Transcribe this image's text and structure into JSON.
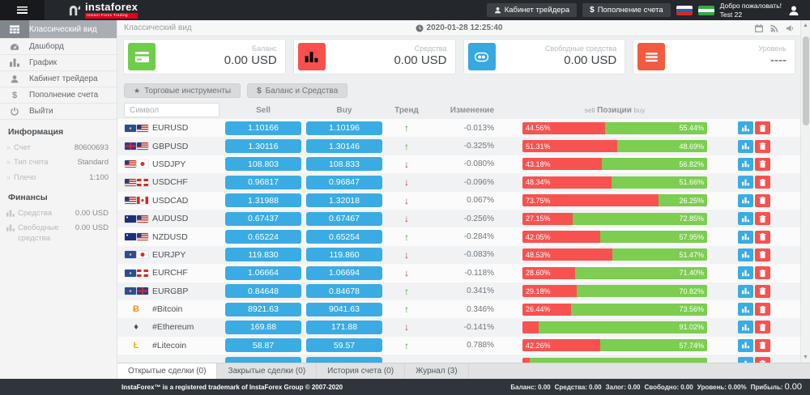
{
  "topbar": {
    "brand": "instaforex",
    "brand_sub": "Instant Forex Trading",
    "cabinet_label": "Кабинет трейдера",
    "deposit_label": "Пополнение счета",
    "welcome_line1": "Добро пожаловать!",
    "welcome_line2": "Test 22"
  },
  "sidebar": {
    "items": [
      {
        "label": "Классический вид",
        "icon": "table-icon",
        "active": true
      },
      {
        "label": "Дашборд",
        "icon": "dashboard-icon",
        "active": false
      },
      {
        "label": "График",
        "icon": "bar-chart-icon",
        "active": false
      },
      {
        "label": "Кабинет трейдера",
        "icon": "user-icon",
        "active": false
      },
      {
        "label": "Пополнение счета",
        "icon": "dollar-icon",
        "active": false
      },
      {
        "label": "Выйти",
        "icon": "power-icon",
        "active": false
      }
    ],
    "info_section": {
      "title": "Информация",
      "rows": [
        {
          "label": "Счет",
          "value": "80600693"
        },
        {
          "label": "Тип счета",
          "value": "Standard"
        },
        {
          "label": "Плечо",
          "value": "1:100"
        }
      ]
    },
    "finance_section": {
      "title": "Финансы",
      "rows": [
        {
          "label": "Средства",
          "value": "0.00 USD"
        },
        {
          "label": "Свободные средства",
          "value": "0.00 USD"
        }
      ]
    }
  },
  "header": {
    "title": "Классический вид",
    "datetime": "2020-01-28 12:25:40"
  },
  "cards": [
    {
      "label": "Баланс",
      "value": "0.00 USD",
      "icon": "credit-card-icon",
      "color": "#6fce49"
    },
    {
      "label": "Средства",
      "value": "0.00 USD",
      "icon": "bar-chart-icon",
      "color": "#f8504e"
    },
    {
      "label": "Свободные средства",
      "value": "0.00 USD",
      "icon": "binoculars-icon",
      "color": "#37a8e0"
    },
    {
      "label": "Уровень",
      "value": "----",
      "icon": "menu-icon",
      "color": "#f15b40"
    }
  ],
  "toolbar": {
    "instruments_label": "Торговые инструменты",
    "balance_label": "Баланс и Средства"
  },
  "table": {
    "symbol_placeholder": "Символ",
    "headers": {
      "sell": "Sell",
      "buy": "Buy",
      "trend": "Тренд",
      "change": "Изменение",
      "pos_sell": "sell",
      "pos_label": "Позиции",
      "pos_buy": "buy"
    },
    "rows": [
      {
        "symbol": "EURUSD",
        "flags": [
          "eu",
          "us"
        ],
        "sell": "1.10166",
        "buy": "1.10196",
        "trend": "up",
        "change": "-0.013%",
        "sell_pct": 44.56,
        "buy_pct": 55.44
      },
      {
        "symbol": "GBPUSD",
        "flags": [
          "gb",
          "us"
        ],
        "sell": "1.30116",
        "buy": "1.30146",
        "trend": "up",
        "change": "-0.325%",
        "sell_pct": 51.31,
        "buy_pct": 48.69
      },
      {
        "symbol": "USDJPY",
        "flags": [
          "us",
          "jp"
        ],
        "sell": "108.803",
        "buy": "108.833",
        "trend": "down",
        "change": "-0.080%",
        "sell_pct": 43.18,
        "buy_pct": 56.82
      },
      {
        "symbol": "USDCHF",
        "flags": [
          "us",
          "ch"
        ],
        "sell": "0.96817",
        "buy": "0.96847",
        "trend": "down",
        "change": "-0.096%",
        "sell_pct": 48.34,
        "buy_pct": 51.66
      },
      {
        "symbol": "USDCAD",
        "flags": [
          "us",
          "ca"
        ],
        "sell": "1.31988",
        "buy": "1.32018",
        "trend": "down",
        "change": "0.067%",
        "sell_pct": 73.75,
        "buy_pct": 26.25
      },
      {
        "symbol": "AUDUSD",
        "flags": [
          "au",
          "us"
        ],
        "sell": "0.67437",
        "buy": "0.67467",
        "trend": "down",
        "change": "-0.256%",
        "sell_pct": 27.15,
        "buy_pct": 72.85
      },
      {
        "symbol": "NZDUSD",
        "flags": [
          "nz",
          "us"
        ],
        "sell": "0.65224",
        "buy": "0.65254",
        "trend": "up",
        "change": "-0.284%",
        "sell_pct": 42.05,
        "buy_pct": 57.95
      },
      {
        "symbol": "EURJPY",
        "flags": [
          "eu",
          "jp"
        ],
        "sell": "119.830",
        "buy": "119.860",
        "trend": "down",
        "change": "-0.083%",
        "sell_pct": 48.53,
        "buy_pct": 51.47
      },
      {
        "symbol": "EURCHF",
        "flags": [
          "eu",
          "ch"
        ],
        "sell": "1.06664",
        "buy": "1.06694",
        "trend": "down",
        "change": "-0.118%",
        "sell_pct": 28.6,
        "buy_pct": 71.4
      },
      {
        "symbol": "EURGBP",
        "flags": [
          "eu",
          "gb"
        ],
        "sell": "0.84648",
        "buy": "0.84678",
        "trend": "up",
        "change": "0.341%",
        "sell_pct": 29.18,
        "buy_pct": 70.82
      },
      {
        "symbol": "#Bitcoin",
        "crypto": "btc",
        "sell": "8921.63",
        "buy": "9041.63",
        "trend": "up",
        "change": "0.346%",
        "sell_pct": 26.44,
        "buy_pct": 73.56
      },
      {
        "symbol": "#Ethereum",
        "crypto": "eth",
        "sell": "169.88",
        "buy": "171.88",
        "trend": "down",
        "change": "-0.141%",
        "sell_pct": 8.98,
        "buy_pct": 91.02
      },
      {
        "symbol": "#Litecoin",
        "crypto": "ltc",
        "sell": "58.87",
        "buy": "59.57",
        "trend": "up",
        "change": "0.788%",
        "sell_pct": 42.26,
        "buy_pct": 57.74
      },
      {
        "symbol": "",
        "flags": [],
        "sell": "",
        "buy": "",
        "trend": "",
        "change": "",
        "sell_pct": 4,
        "buy_pct": 96,
        "partial": true
      }
    ]
  },
  "tabs": [
    {
      "label": "Открытые сделки (0)",
      "active": true
    },
    {
      "label": "Закрытые сделки (0)",
      "active": false
    },
    {
      "label": "История счета (0)",
      "active": false
    },
    {
      "label": "Журнал (3)",
      "active": false
    }
  ],
  "footer": {
    "copyright": "InstaForex™ is a registered trademark of InstaForex Group © 2007-2020",
    "stats": [
      {
        "label": "Баланс:",
        "value": "0.00"
      },
      {
        "label": "Средства:",
        "value": "0.00"
      },
      {
        "label": "Залог:",
        "value": "0.00"
      },
      {
        "label": "Свободно:",
        "value": "0.00"
      },
      {
        "label": "Уровень:",
        "value": "0.00%"
      },
      {
        "label": "Прибыль:",
        "value": "0.00",
        "big": true
      }
    ]
  },
  "colors": {
    "accent_blue": "#3aace3",
    "positive_green": "#7ccd50",
    "negative_red": "#f85250",
    "trend_up": "#3a9e33",
    "trend_down": "#c0392b",
    "brand_red": "#e2001a",
    "topbar_bg": "#24272c",
    "footer_bg": "#2f353b"
  }
}
